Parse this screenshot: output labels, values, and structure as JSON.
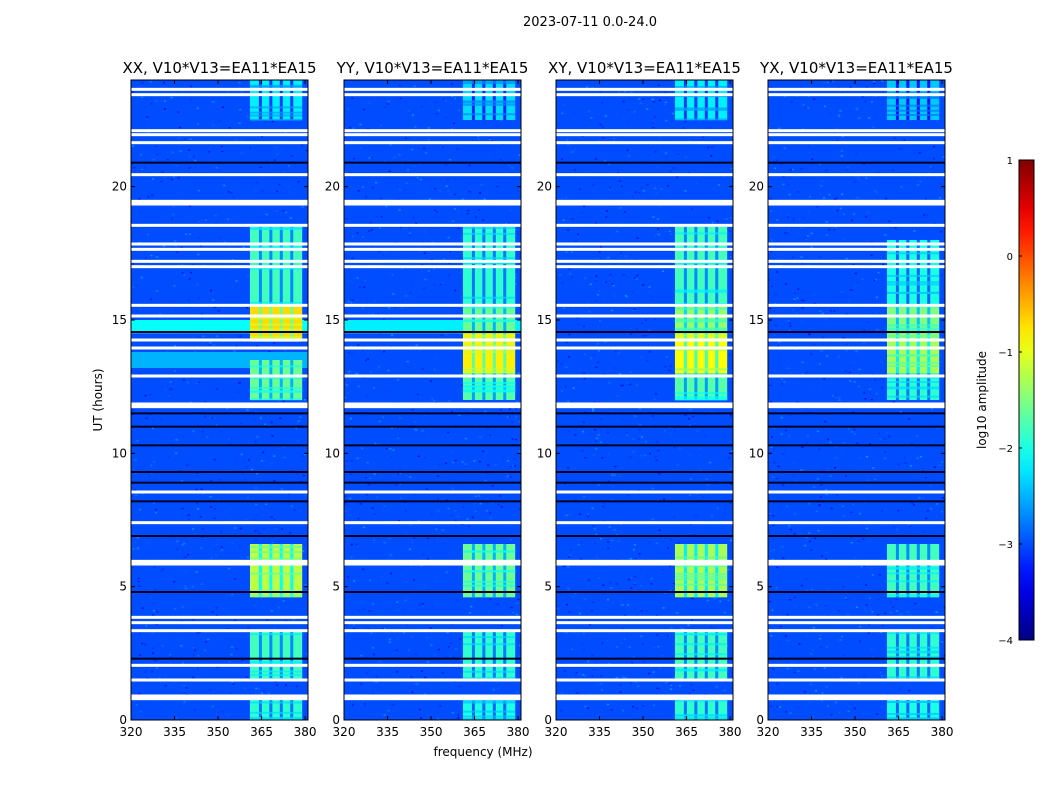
{
  "figure": {
    "title": "2023-07-11 0.0-24.0"
  },
  "chart_data": {
    "type": "heatmap",
    "title": "2023-07-11 0.0-24.0",
    "xlabel": "frequency (MHz)",
    "ylabel": "UT (hours)",
    "xlim": [
      320,
      381
    ],
    "ylim": [
      0,
      24
    ],
    "xticks": [
      320,
      335,
      350,
      365,
      380
    ],
    "yticks": [
      0,
      5,
      10,
      15,
      20
    ],
    "colorbar": {
      "label": "log10 amplitude",
      "range": [
        -4,
        1
      ],
      "ticks": [
        1,
        0,
        -1,
        -2,
        -3,
        -4
      ],
      "colormap": "jet"
    },
    "background_level": -3.0,
    "band": {
      "freq_mhz": [
        361,
        379
      ],
      "description": "elevated RFI band"
    },
    "panels": [
      {
        "title": "XX, V10*V13=EA11*EA15",
        "band_start_mhz": 361,
        "regions": [
          {
            "ut": [
              0.0,
              0.9
            ],
            "level": -1.9
          },
          {
            "ut": [
              1.5,
              3.3
            ],
            "level": -1.8
          },
          {
            "ut": [
              4.6,
              6.6
            ],
            "level": -1.2
          },
          {
            "ut": [
              12.0,
              13.5
            ],
            "level": -1.6
          },
          {
            "ut": [
              14.2,
              15.6
            ],
            "level": -0.7
          },
          {
            "ut": [
              15.6,
              18.5
            ],
            "level": -1.8
          },
          {
            "ut": [
              22.5,
              24.0
            ],
            "level": -2.2
          }
        ],
        "full_width_features": [
          {
            "ut": [
              14.5,
              15.0
            ],
            "level": -2.1
          },
          {
            "ut": [
              13.2,
              13.8
            ],
            "level": -2.5
          }
        ]
      },
      {
        "title": "YY, V10*V13=EA11*EA15",
        "band_start_mhz": 361,
        "regions": [
          {
            "ut": [
              0.0,
              0.9
            ],
            "level": -2.0
          },
          {
            "ut": [
              1.5,
              3.3
            ],
            "level": -1.9
          },
          {
            "ut": [
              4.6,
              6.6
            ],
            "level": -1.6
          },
          {
            "ut": [
              12.0,
              13.0
            ],
            "level": -1.7
          },
          {
            "ut": [
              13.0,
              14.5
            ],
            "level": -0.8
          },
          {
            "ut": [
              14.5,
              15.6
            ],
            "level": -1.6
          },
          {
            "ut": [
              15.6,
              18.5
            ],
            "level": -1.9
          },
          {
            "ut": [
              22.5,
              24.0
            ],
            "level": -2.3
          }
        ],
        "full_width_features": [
          {
            "ut": [
              14.5,
              15.0
            ],
            "level": -2.2
          }
        ]
      },
      {
        "title": "XY, V10*V13=EA11*EA15",
        "band_start_mhz": 361,
        "regions": [
          {
            "ut": [
              0.0,
              0.9
            ],
            "level": -1.9
          },
          {
            "ut": [
              1.5,
              3.3
            ],
            "level": -1.8
          },
          {
            "ut": [
              4.6,
              6.6
            ],
            "level": -1.3
          },
          {
            "ut": [
              12.0,
              13.0
            ],
            "level": -1.7
          },
          {
            "ut": [
              13.0,
              14.5
            ],
            "level": -0.9
          },
          {
            "ut": [
              14.5,
              15.6
            ],
            "level": -1.4
          },
          {
            "ut": [
              15.6,
              18.5
            ],
            "level": -1.8
          },
          {
            "ut": [
              22.5,
              24.0
            ],
            "level": -2.2
          }
        ],
        "full_width_features": []
      },
      {
        "title": "YX, V10*V13=EA11*EA15",
        "band_start_mhz": 361,
        "regions": [
          {
            "ut": [
              0.0,
              0.9
            ],
            "level": -2.0
          },
          {
            "ut": [
              1.5,
              3.3
            ],
            "level": -1.9
          },
          {
            "ut": [
              4.6,
              6.6
            ],
            "level": -1.8
          },
          {
            "ut": [
              12.0,
              13.0
            ],
            "level": -1.9
          },
          {
            "ut": [
              13.0,
              14.5
            ],
            "level": -1.3
          },
          {
            "ut": [
              14.5,
              15.6
            ],
            "level": -1.5
          },
          {
            "ut": [
              15.6,
              18.0
            ],
            "level": -2.0
          },
          {
            "ut": [
              22.5,
              24.0
            ],
            "level": -2.4
          }
        ],
        "full_width_features": []
      }
    ],
    "flagged_gaps_ut": [
      0.8,
      0.9,
      1.5,
      2.05,
      3.35,
      3.65,
      3.85,
      5.85,
      5.95,
      7.4,
      8.55,
      11.75,
      11.85,
      12.9,
      13.95,
      14.25,
      15.15,
      15.55,
      17.0,
      17.2,
      17.65,
      17.85,
      18.55,
      19.35,
      19.45,
      20.45,
      21.65,
      21.95,
      22.1,
      23.45,
      23.65
    ],
    "black_lines_ut": [
      2.3,
      4.8,
      6.9,
      8.2,
      8.9,
      9.3,
      10.3,
      11.0,
      11.5,
      14.55,
      20.9
    ]
  }
}
